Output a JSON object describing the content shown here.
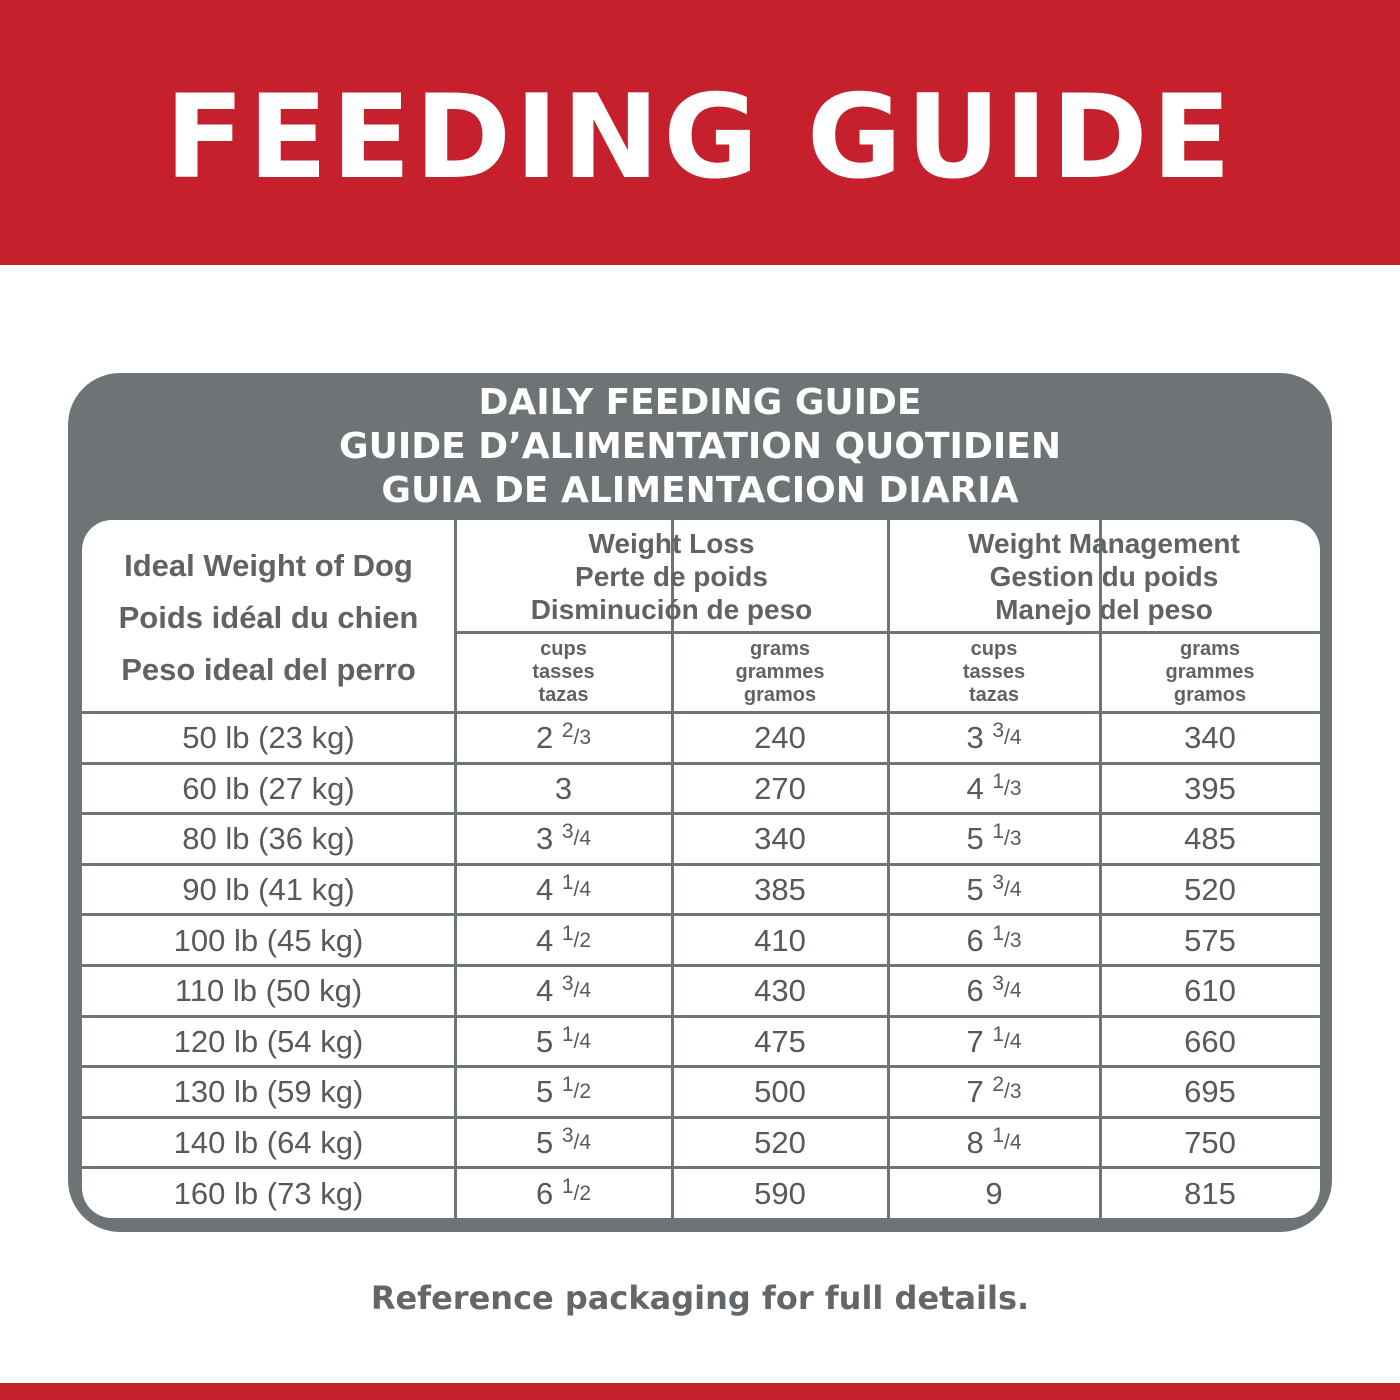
{
  "header": {
    "title": "FEEDING GUIDE"
  },
  "table": {
    "title": [
      "DAILY FEEDING GUIDE",
      "GUIDE D’ALIMENTATION QUOTIDIEN",
      "GUIA DE ALIMENTACION DIARIA"
    ],
    "weight_header": [
      "Ideal Weight of Dog",
      "Poids idéal du chien",
      "Peso ideal del perro"
    ],
    "groups": [
      {
        "label": [
          "Weight Loss",
          "Perte de poids",
          "Disminución de peso"
        ]
      },
      {
        "label": [
          "Weight Management",
          "Gestion du poids",
          "Manejo del peso"
        ]
      }
    ],
    "subheaders": [
      [
        "cups",
        "tasses",
        "tazas"
      ],
      [
        "grams",
        "grammes",
        "gramos"
      ],
      [
        "cups",
        "tasses",
        "tazas"
      ],
      [
        "grams",
        "grammes",
        "gramos"
      ]
    ],
    "rows": [
      [
        "50 lb (23 kg)",
        "2 2/3",
        "240",
        "3 3/4",
        "340"
      ],
      [
        "60 lb (27 kg)",
        "3",
        "270",
        "4 1/3",
        "395"
      ],
      [
        "80 lb (36 kg)",
        "3 3/4",
        "340",
        "5 1/3",
        "485"
      ],
      [
        "90 lb (41 kg)",
        "4 1/4",
        "385",
        "5 3/4",
        "520"
      ],
      [
        "100 lb (45 kg)",
        "4 1/2",
        "410",
        "6 1/3",
        "575"
      ],
      [
        "110 lb (50 kg)",
        "4 3/4",
        "430",
        "6 3/4",
        "610"
      ],
      [
        "120 lb (54 kg)",
        "5 1/4",
        "475",
        "7 1/4",
        "660"
      ],
      [
        "130 lb (59 kg)",
        "5 1/2",
        "500",
        "7 2/3",
        "695"
      ],
      [
        "140 lb (64 kg)",
        "5 3/4",
        "520",
        "8 1/4",
        "750"
      ],
      [
        "160 lb (73 kg)",
        "6 1/2",
        "590",
        "9",
        "815"
      ]
    ]
  },
  "footer": {
    "note": "Reference packaging for full details."
  }
}
